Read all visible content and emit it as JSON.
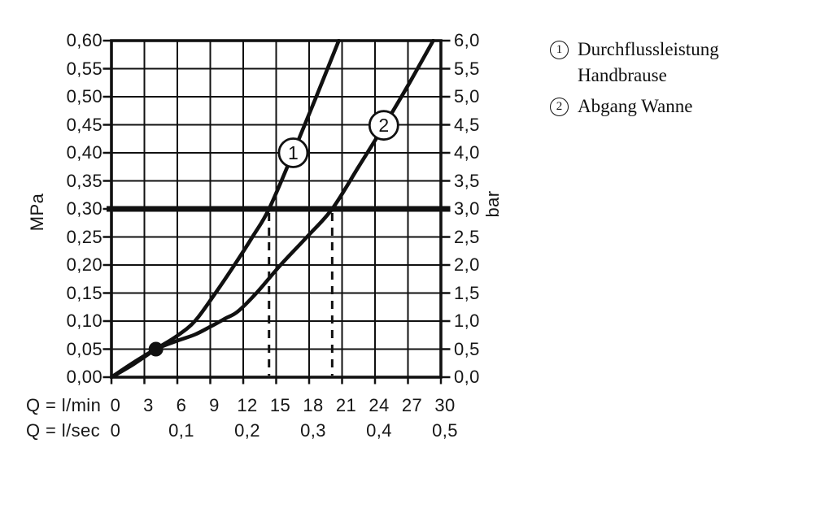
{
  "chart_data": {
    "type": "line",
    "title": "",
    "grid": true,
    "legend_position": "top-right",
    "colors": {
      "ink": "#111111",
      "background": "#ffffff"
    },
    "x_axis": {
      "label_lmin": "Q = l/min",
      "label_lsec": "Q = l/sec",
      "range_lmin": [
        0,
        30
      ],
      "tick_step_lmin": 3,
      "ticks_lmin": [
        "0",
        "3",
        "6",
        "9",
        "12",
        "15",
        "18",
        "21",
        "24",
        "27",
        "30"
      ],
      "ticks_lsec": [
        {
          "label": "0",
          "x": 0
        },
        {
          "label": "0,1",
          "x": 6
        },
        {
          "label": "0,2",
          "x": 12
        },
        {
          "label": "0,3",
          "x": 18
        },
        {
          "label": "0,4",
          "x": 24
        },
        {
          "label": "0,5",
          "x": 30
        }
      ]
    },
    "y_axis_left": {
      "unit": "MPa",
      "range": [
        0,
        0.6
      ],
      "tick_step": 0.05,
      "ticks": [
        "0,60",
        "0,55",
        "0,50",
        "0,45",
        "0,40",
        "0,35",
        "0,30",
        "0,25",
        "0,20",
        "0,15",
        "0,10",
        "0,05",
        "0,00"
      ]
    },
    "y_axis_right": {
      "unit": "bar",
      "range": [
        0,
        6
      ],
      "tick_step": 0.5,
      "ticks": [
        "6,0",
        "5,5",
        "5,0",
        "4,5",
        "4,0",
        "3,5",
        "3,0",
        "2,5",
        "2,0",
        "1,5",
        "1,0",
        "0,5",
        "0,0"
      ]
    },
    "reference_line_mpa": 0.3,
    "reference_line_bar": 3.0,
    "dashed_guides_lmin": [
      14.35,
      20.1
    ],
    "dot_point": {
      "x_lmin": 4.05,
      "y_mpa": 0.05
    },
    "series": [
      {
        "marker_label": "1",
        "name": "Durchflussleistung Handbrause",
        "flow_at_3bar_lmin": 14.35,
        "marker_at": {
          "x_lmin": 16.55,
          "y_mpa": 0.4
        },
        "points_lmin_mpa": [
          [
            0,
            0
          ],
          [
            2,
            0.023
          ],
          [
            4.05,
            0.05
          ],
          [
            6,
            0.074
          ],
          [
            7.6,
            0.1
          ],
          [
            9.4,
            0.148
          ],
          [
            11.2,
            0.2
          ],
          [
            12.9,
            0.252
          ],
          [
            14.35,
            0.3
          ],
          [
            16.55,
            0.4
          ],
          [
            18.65,
            0.5
          ],
          [
            20.7,
            0.6
          ]
        ]
      },
      {
        "marker_label": "2",
        "name": "Abgang Wanne",
        "flow_at_3bar_lmin": 20.1,
        "marker_at": {
          "x_lmin": 24.8,
          "y_mpa": 0.449
        },
        "points_lmin_mpa": [
          [
            0,
            0
          ],
          [
            2,
            0.026
          ],
          [
            4.05,
            0.05
          ],
          [
            6,
            0.065
          ],
          [
            7.6,
            0.076
          ],
          [
            9,
            0.09
          ],
          [
            10.4,
            0.105
          ],
          [
            11.5,
            0.117
          ],
          [
            13.2,
            0.15
          ],
          [
            15.4,
            0.2
          ],
          [
            17.8,
            0.25
          ],
          [
            20.1,
            0.3
          ],
          [
            22.5,
            0.375
          ],
          [
            24.85,
            0.449
          ],
          [
            27,
            0.52
          ],
          [
            29.3,
            0.6
          ]
        ]
      }
    ]
  },
  "legend": {
    "items": [
      {
        "number": "1",
        "lines": [
          "Durchflussleistung",
          "Handbrause"
        ]
      },
      {
        "number": "2",
        "lines": [
          "Abgang Wanne"
        ]
      }
    ]
  }
}
